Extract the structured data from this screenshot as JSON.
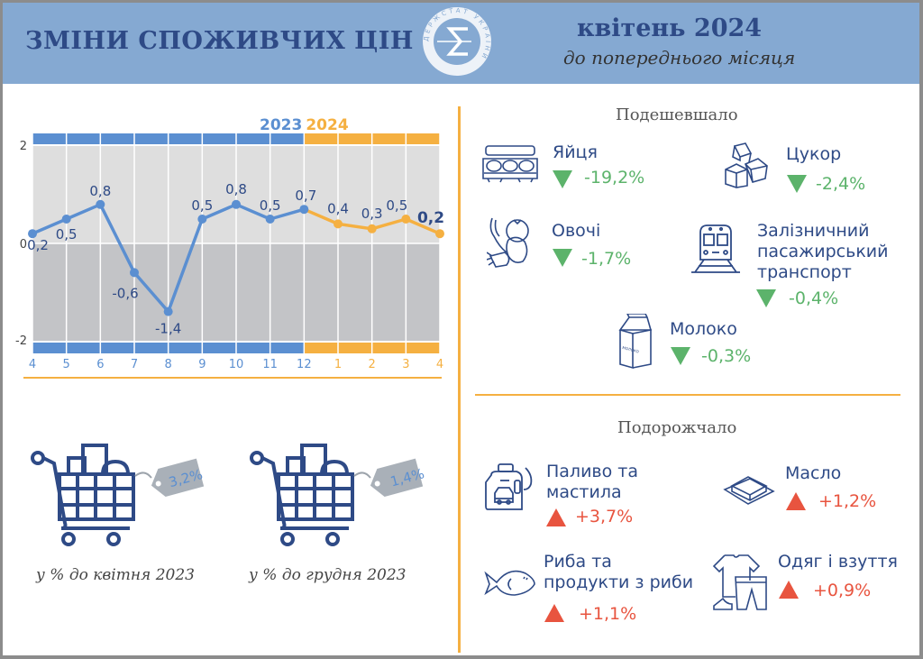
{
  "header": {
    "title": "ЗМІНИ СПОЖИВЧИХ ЦІН",
    "logo": {
      "name": "derzhstat-logo",
      "ring_text": "ДЕРЖСТАТ УКРАЇНИ",
      "glyph": "Σ"
    },
    "period": "квітень 2024",
    "subtitle": "до попереднього місяця"
  },
  "colors": {
    "header_bg": "#85a9d2",
    "title_text": "#2e4a86",
    "series_2023": "#5b8fd1",
    "series_2024": "#f5b041",
    "decrease": "#5cb36b",
    "increase": "#e8543f",
    "divider": "#f5b041"
  },
  "chart_data": {
    "type": "line",
    "title": "",
    "year_labels": [
      "2023",
      "2024"
    ],
    "categories": [
      "4",
      "5",
      "6",
      "7",
      "8",
      "9",
      "10",
      "11",
      "12",
      "1",
      "2",
      "3",
      "4"
    ],
    "series": [
      {
        "name": "2023",
        "x": [
          "4",
          "5",
          "6",
          "7",
          "8",
          "9",
          "10",
          "11",
          "12"
        ],
        "values": [
          0.2,
          0.5,
          0.8,
          -0.6,
          -1.4,
          0.5,
          0.8,
          0.5,
          0.7
        ]
      },
      {
        "name": "2024",
        "x": [
          "12",
          "1",
          "2",
          "3",
          "4"
        ],
        "values": [
          0.7,
          0.4,
          0.3,
          0.5,
          0.2
        ]
      }
    ],
    "value_labels": [
      "0,2",
      "0,5",
      "0,8",
      "-0,6",
      "-1,4",
      "0,5",
      "0,8",
      "0,5",
      "0,7",
      "0,4",
      "0,3",
      "0,5",
      "0,2"
    ],
    "y_ticks": [
      "2",
      "0",
      "-2"
    ],
    "ylim": [
      -2,
      2
    ],
    "xlabel": "",
    "ylabel": "",
    "grid": true,
    "legend": "none"
  },
  "carts": [
    {
      "tag": "3,2%",
      "caption": "у % до квітня 2023"
    },
    {
      "tag": "1,4%",
      "caption": "у % до грудня 2023"
    }
  ],
  "cheaper": {
    "title": "Подешевшало",
    "items": [
      {
        "icon": "egg-carton-icon",
        "label": "Яйця",
        "value": "-19,2%"
      },
      {
        "icon": "sugar-cubes-icon",
        "label": "Цукор",
        "value": "-2,4%"
      },
      {
        "icon": "vegetables-icon",
        "label": "Овочі",
        "value": "-1,7%"
      },
      {
        "icon": "train-icon",
        "label_lines": [
          "Залізничний",
          "пасажирський",
          "транспорт"
        ],
        "value": "-0,4%"
      },
      {
        "icon": "milk-carton-icon",
        "label": "Молоко",
        "value": "-0,3%",
        "carton_text": "МОЛОКО"
      }
    ]
  },
  "pricier": {
    "title": "Подорожчало",
    "items": [
      {
        "icon": "fuel-canister-icon",
        "label_lines": [
          "Паливо та",
          "мастила"
        ],
        "value": "+3,7%"
      },
      {
        "icon": "butter-icon",
        "label": "Масло",
        "value": "+1,2%"
      },
      {
        "icon": "fish-icon",
        "label_lines": [
          "Риба та",
          "продукти з риби"
        ],
        "value": "+1,1%"
      },
      {
        "icon": "clothes-shoes-icon",
        "label": "Одяг і взуття",
        "value": "+0,9%"
      }
    ]
  }
}
